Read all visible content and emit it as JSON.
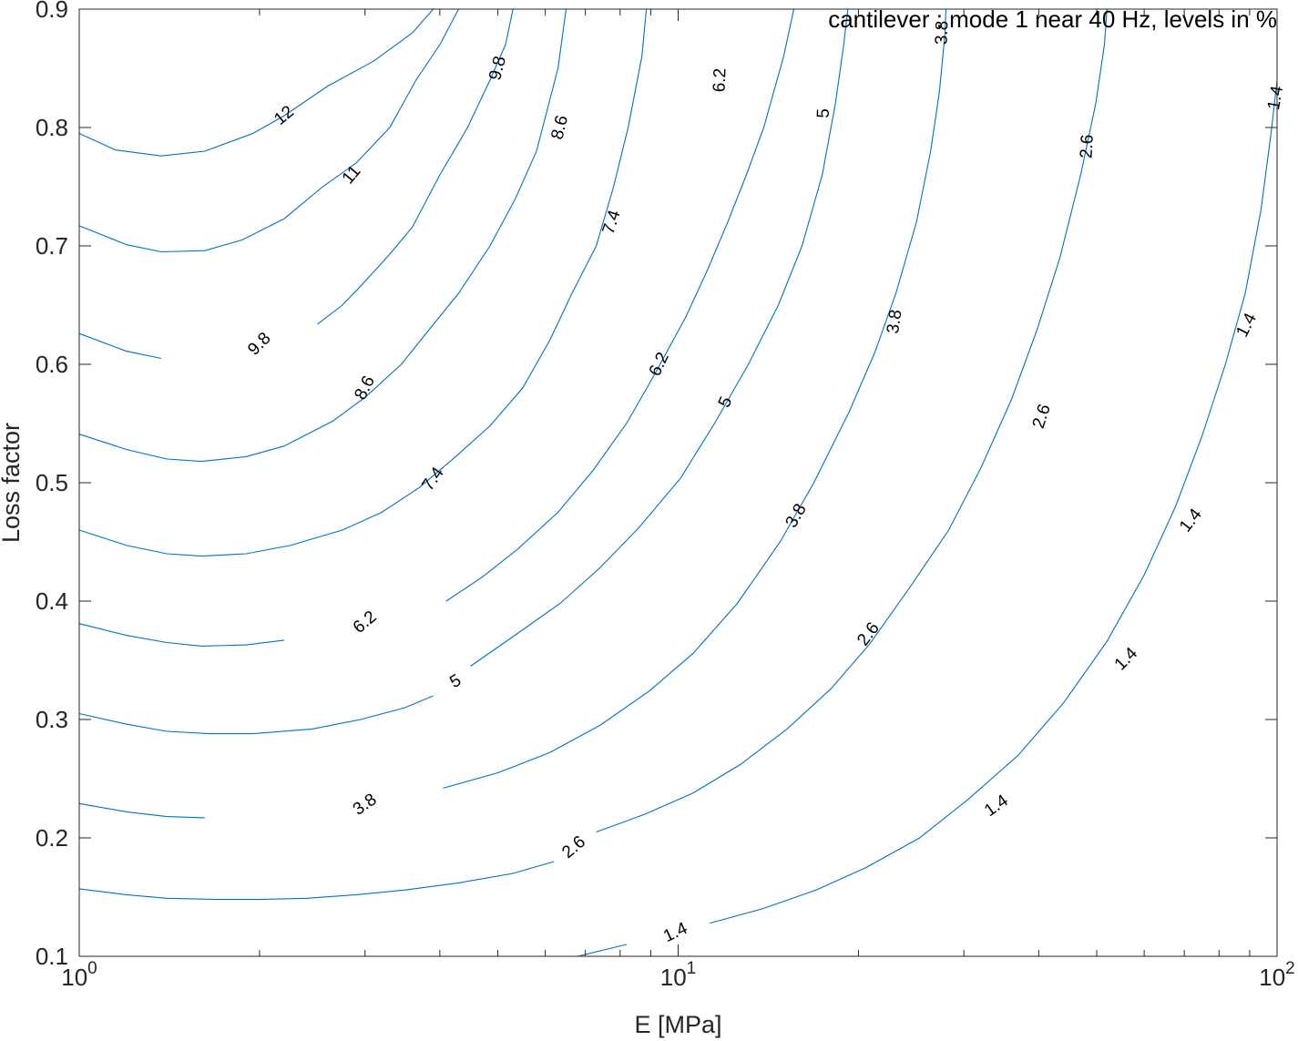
{
  "chart_data": {
    "type": "contour",
    "title": "cantilever : mode 1 near 40 Hz, levels in %",
    "xlabel": "E [MPa]",
    "ylabel": "Loss factor",
    "xscale": "log",
    "xlim": [
      1,
      100
    ],
    "ylim": [
      0.1,
      0.9
    ],
    "grid": false,
    "line_color": "#0072BD",
    "x_ticks": [
      {
        "value": 1,
        "base": "10",
        "exp": "0"
      },
      {
        "value": 10,
        "base": "10",
        "exp": "1"
      },
      {
        "value": 100,
        "base": "10",
        "exp": "2"
      }
    ],
    "y_ticks": [
      "0.1",
      "0.2",
      "0.3",
      "0.4",
      "0.5",
      "0.6",
      "0.7",
      "0.8",
      "0.9"
    ],
    "levels": [
      {
        "level": "12",
        "points": [
          [
            1.0,
            0.795
          ],
          [
            1.15,
            0.781
          ],
          [
            1.37,
            0.776
          ],
          [
            1.62,
            0.78
          ],
          [
            1.95,
            0.795
          ],
          [
            2.2,
            0.81
          ],
          [
            2.6,
            0.835
          ],
          [
            3.1,
            0.856
          ],
          [
            3.6,
            0.88
          ],
          [
            3.9,
            0.9
          ]
        ]
      },
      {
        "level": "11",
        "points": [
          [
            1.0,
            0.717
          ],
          [
            1.2,
            0.701
          ],
          [
            1.37,
            0.695
          ],
          [
            1.62,
            0.696
          ],
          [
            1.87,
            0.705
          ],
          [
            2.2,
            0.723
          ],
          [
            2.55,
            0.75
          ],
          [
            2.9,
            0.77
          ],
          [
            3.3,
            0.8
          ],
          [
            3.65,
            0.84
          ],
          [
            4.0,
            0.87
          ],
          [
            4.3,
            0.9
          ]
        ]
      },
      {
        "level": "9.8",
        "points": [
          [
            1.0,
            0.626
          ],
          [
            1.2,
            0.611
          ],
          [
            1.37,
            0.605
          ]
        ]
      },
      {
        "level": "9.8",
        "points": [
          [
            2.5,
            0.634
          ],
          [
            2.75,
            0.65
          ],
          [
            3.0,
            0.67
          ],
          [
            3.3,
            0.693
          ],
          [
            3.6,
            0.716
          ],
          [
            4.0,
            0.76
          ],
          [
            4.45,
            0.8
          ],
          [
            4.85,
            0.84
          ],
          [
            5.15,
            0.87
          ],
          [
            5.3,
            0.9
          ]
        ]
      },
      {
        "level": "8.6",
        "points": [
          [
            1.0,
            0.541
          ],
          [
            1.2,
            0.528
          ],
          [
            1.4,
            0.52
          ],
          [
            1.6,
            0.518
          ],
          [
            1.9,
            0.522
          ],
          [
            2.2,
            0.531
          ],
          [
            2.65,
            0.552
          ],
          [
            3.0,
            0.572
          ],
          [
            3.45,
            0.6
          ],
          [
            3.85,
            0.63
          ],
          [
            4.3,
            0.66
          ],
          [
            4.85,
            0.7
          ],
          [
            5.35,
            0.74
          ],
          [
            5.8,
            0.78
          ],
          [
            6.3,
            0.85
          ],
          [
            6.5,
            0.9
          ]
        ]
      },
      {
        "level": "7.4",
        "points": [
          [
            1.0,
            0.46
          ],
          [
            1.2,
            0.447
          ],
          [
            1.4,
            0.44
          ],
          [
            1.6,
            0.438
          ],
          [
            1.9,
            0.44
          ],
          [
            2.25,
            0.447
          ],
          [
            2.75,
            0.46
          ],
          [
            3.2,
            0.475
          ],
          [
            3.7,
            0.496
          ],
          [
            4.25,
            0.522
          ],
          [
            4.85,
            0.548
          ],
          [
            5.5,
            0.58
          ],
          [
            6.1,
            0.62
          ],
          [
            6.65,
            0.66
          ],
          [
            7.3,
            0.7
          ],
          [
            7.8,
            0.75
          ],
          [
            8.25,
            0.8
          ],
          [
            8.7,
            0.86
          ],
          [
            8.85,
            0.9
          ]
        ]
      },
      {
        "level": "6.2",
        "points": [
          [
            1.0,
            0.381
          ],
          [
            1.2,
            0.371
          ],
          [
            1.4,
            0.365
          ],
          [
            1.6,
            0.362
          ],
          [
            1.9,
            0.363
          ],
          [
            2.2,
            0.367
          ]
        ]
      },
      {
        "level": "6.2",
        "points": [
          [
            4.1,
            0.4
          ],
          [
            4.7,
            0.42
          ],
          [
            5.4,
            0.444
          ],
          [
            6.3,
            0.475
          ],
          [
            7.2,
            0.51
          ],
          [
            8.2,
            0.55
          ],
          [
            9.1,
            0.59
          ],
          [
            10.3,
            0.64
          ],
          [
            11.2,
            0.68
          ],
          [
            12.1,
            0.72
          ],
          [
            13.0,
            0.76
          ],
          [
            13.9,
            0.8
          ],
          [
            15.0,
            0.86
          ],
          [
            15.6,
            0.9
          ]
        ]
      },
      {
        "level": "5",
        "points": [
          [
            1.0,
            0.305
          ],
          [
            1.2,
            0.296
          ],
          [
            1.4,
            0.29
          ],
          [
            1.65,
            0.288
          ],
          [
            1.95,
            0.288
          ],
          [
            2.45,
            0.292
          ],
          [
            2.95,
            0.3
          ],
          [
            3.5,
            0.31
          ],
          [
            3.9,
            0.32
          ]
        ]
      },
      {
        "level": "5",
        "points": [
          [
            4.5,
            0.345
          ],
          [
            5.3,
            0.37
          ],
          [
            6.35,
            0.398
          ],
          [
            7.4,
            0.428
          ],
          [
            8.6,
            0.462
          ],
          [
            10.1,
            0.504
          ],
          [
            11.5,
            0.55
          ],
          [
            13.1,
            0.6
          ],
          [
            14.7,
            0.65
          ],
          [
            16.1,
            0.7
          ],
          [
            17.4,
            0.76
          ],
          [
            18.3,
            0.82
          ],
          [
            18.9,
            0.87
          ],
          [
            19.2,
            0.9
          ]
        ]
      },
      {
        "level": "3.8",
        "points": [
          [
            1.0,
            0.229
          ],
          [
            1.2,
            0.222
          ],
          [
            1.4,
            0.218
          ],
          [
            1.62,
            0.217
          ]
        ]
      },
      {
        "level": "3.8",
        "points": [
          [
            4.05,
            0.242
          ],
          [
            5.0,
            0.255
          ],
          [
            6.1,
            0.272
          ],
          [
            7.4,
            0.295
          ],
          [
            8.95,
            0.324
          ],
          [
            10.6,
            0.356
          ],
          [
            12.55,
            0.398
          ],
          [
            14.8,
            0.45
          ],
          [
            16.85,
            0.5
          ],
          [
            19.3,
            0.56
          ],
          [
            21.3,
            0.61
          ],
          [
            23.1,
            0.66
          ],
          [
            25.0,
            0.72
          ],
          [
            26.4,
            0.78
          ],
          [
            27.3,
            0.83
          ],
          [
            27.9,
            0.88
          ],
          [
            28.0,
            0.9
          ]
        ]
      },
      {
        "level": "2.6",
        "points": [
          [
            1.0,
            0.157
          ],
          [
            1.2,
            0.152
          ],
          [
            1.4,
            0.149
          ],
          [
            1.7,
            0.148
          ],
          [
            2.0,
            0.148
          ],
          [
            2.4,
            0.149
          ],
          [
            2.9,
            0.152
          ],
          [
            3.5,
            0.156
          ],
          [
            4.3,
            0.162
          ],
          [
            5.3,
            0.17
          ],
          [
            6.2,
            0.18
          ]
        ]
      },
      {
        "level": "2.6",
        "points": [
          [
            7.3,
            0.205
          ],
          [
            8.8,
            0.22
          ],
          [
            10.6,
            0.238
          ],
          [
            12.7,
            0.262
          ],
          [
            15.2,
            0.292
          ],
          [
            18.0,
            0.326
          ],
          [
            20.9,
            0.364
          ],
          [
            24.4,
            0.412
          ],
          [
            28.3,
            0.46
          ],
          [
            32.0,
            0.512
          ],
          [
            36.0,
            0.57
          ],
          [
            39.8,
            0.63
          ],
          [
            43.4,
            0.69
          ],
          [
            47.0,
            0.76
          ],
          [
            49.8,
            0.82
          ],
          [
            51.5,
            0.87
          ],
          [
            52.0,
            0.9
          ]
        ]
      },
      {
        "level": "1.4",
        "points": [
          [
            6.8,
            0.1
          ],
          [
            8.2,
            0.11
          ]
        ]
      },
      {
        "level": "1.4",
        "points": [
          [
            11.3,
            0.128
          ],
          [
            13.8,
            0.14
          ],
          [
            17.0,
            0.156
          ],
          [
            20.6,
            0.175
          ],
          [
            25.3,
            0.2
          ],
          [
            30.4,
            0.232
          ],
          [
            37.0,
            0.27
          ],
          [
            44.0,
            0.314
          ],
          [
            52.0,
            0.366
          ],
          [
            60.0,
            0.422
          ],
          [
            67.7,
            0.48
          ],
          [
            75.0,
            0.54
          ],
          [
            82.0,
            0.6
          ],
          [
            88.5,
            0.66
          ],
          [
            94.0,
            0.73
          ],
          [
            98.0,
            0.8
          ],
          [
            100.0,
            0.84
          ]
        ]
      }
    ],
    "label_positions": [
      {
        "text": "12",
        "x": 2.2,
        "y": 0.81,
        "angle": -40
      },
      {
        "text": "11",
        "x": 2.85,
        "y": 0.76,
        "angle": -50
      },
      {
        "text": "9.8",
        "x": 5.0,
        "y": 0.85,
        "angle": -76
      },
      {
        "text": "9.8",
        "x": 2.0,
        "y": 0.617,
        "angle": -45
      },
      {
        "text": "8.6",
        "x": 6.35,
        "y": 0.8,
        "angle": -76
      },
      {
        "text": "8.6",
        "x": 3.0,
        "y": 0.58,
        "angle": -63
      },
      {
        "text": "7.4",
        "x": 7.75,
        "y": 0.72,
        "angle": -72
      },
      {
        "text": "7.4",
        "x": 3.9,
        "y": 0.503,
        "angle": -55
      },
      {
        "text": "6.2",
        "x": 11.75,
        "y": 0.84,
        "angle": -88
      },
      {
        "text": "6.2",
        "x": 9.3,
        "y": 0.6,
        "angle": -65
      },
      {
        "text": "6.2",
        "x": 3.0,
        "y": 0.382,
        "angle": -40
      },
      {
        "text": "5",
        "x": 17.5,
        "y": 0.812,
        "angle": -88
      },
      {
        "text": "5",
        "x": 12.0,
        "y": 0.568,
        "angle": -66
      },
      {
        "text": "5",
        "x": 4.25,
        "y": 0.332,
        "angle": -30
      },
      {
        "text": "3.8",
        "x": 27.6,
        "y": 0.88,
        "angle": -88
      },
      {
        "text": "3.8",
        "x": 23.0,
        "y": 0.636,
        "angle": -82
      },
      {
        "text": "3.8",
        "x": 15.75,
        "y": 0.472,
        "angle": -60
      },
      {
        "text": "3.8",
        "x": 3.0,
        "y": 0.228,
        "angle": -35
      },
      {
        "text": "2.6",
        "x": 48.2,
        "y": 0.784,
        "angle": -87
      },
      {
        "text": "2.6",
        "x": 40.5,
        "y": 0.556,
        "angle": -72
      },
      {
        "text": "2.6",
        "x": 20.8,
        "y": 0.372,
        "angle": -53
      },
      {
        "text": "2.6",
        "x": 6.7,
        "y": 0.192,
        "angle": -40
      },
      {
        "text": "1.4",
        "x": 99.5,
        "y": 0.825,
        "angle": -80
      },
      {
        "text": "1.4",
        "x": 89.0,
        "y": 0.633,
        "angle": -63
      },
      {
        "text": "1.4",
        "x": 71.8,
        "y": 0.468,
        "angle": -52
      },
      {
        "text": "1.4",
        "x": 56.0,
        "y": 0.351,
        "angle": -45
      },
      {
        "text": "1.4",
        "x": 34.0,
        "y": 0.227,
        "angle": -35
      },
      {
        "text": "1.4",
        "x": 9.9,
        "y": 0.12,
        "angle": -25
      }
    ]
  }
}
